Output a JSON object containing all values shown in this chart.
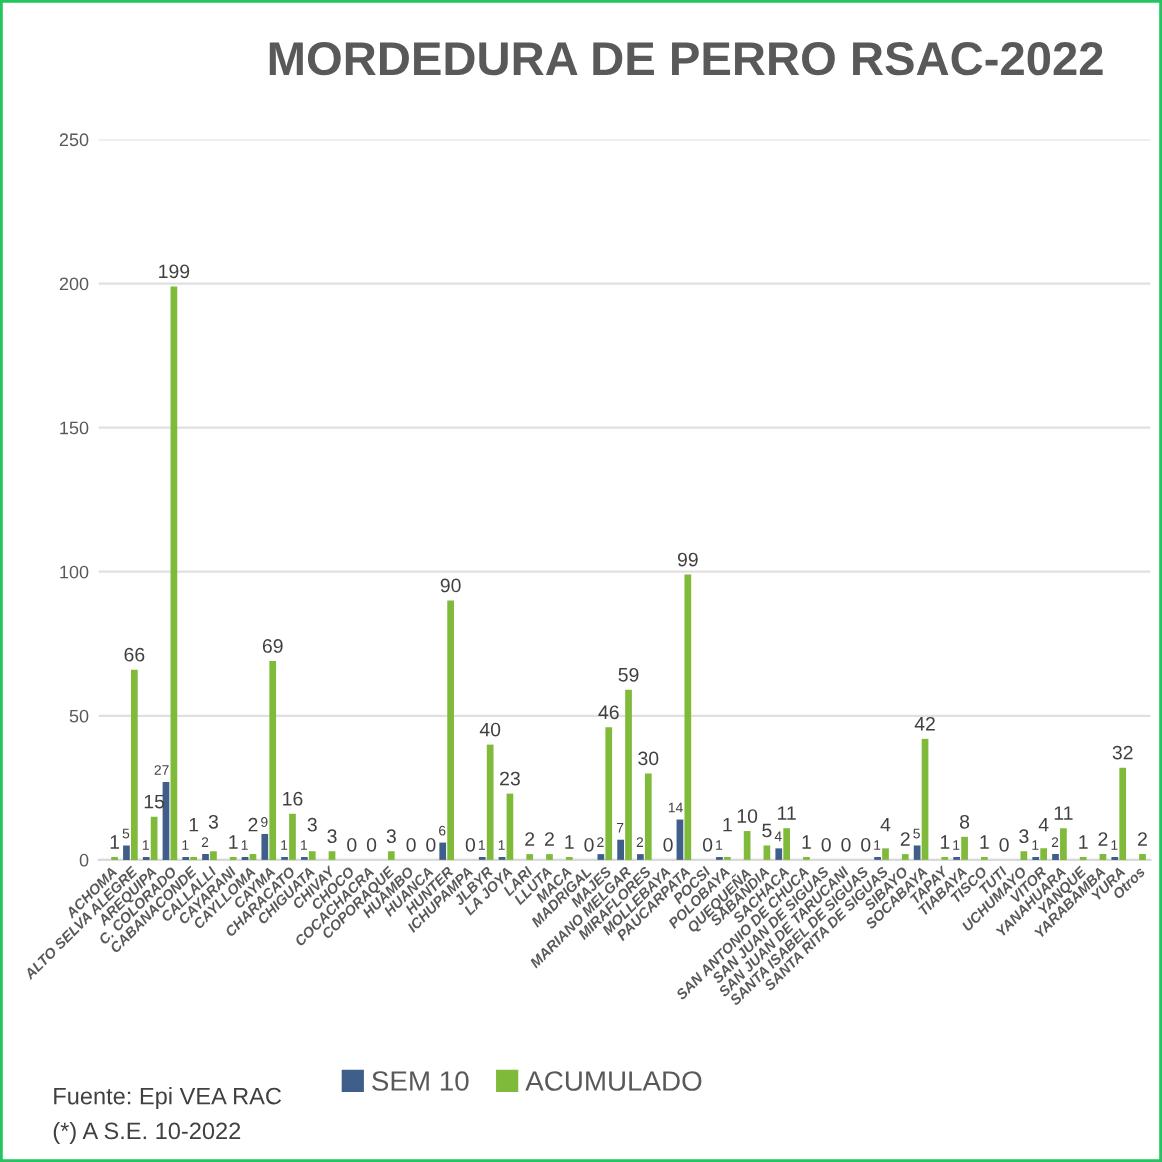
{
  "chart_data": {
    "type": "bar",
    "title": "MORDEDURA DE PERRO RSAC-2022",
    "categories": [
      "ACHOMA",
      "ALTO SELVA ALEGRE",
      "AREQUIPA",
      "C. COLORADO",
      "CABANACONDE",
      "CALLALLI",
      "CAYARANI",
      "CAYLLOMA",
      "CAYMA",
      "CHARACATO",
      "CHIGUATA",
      "CHIVAY",
      "CHOCO",
      "COCACHACRA",
      "COPORAQUE",
      "HUAMBO",
      "HUANCA",
      "HUNTER",
      "ICHUPAMPA",
      "JLBYR",
      "LA JOYA",
      "LARI",
      "LLUTA",
      "MACA",
      "MADRIGAL",
      "MAJES",
      "MARIANO MELGAR",
      "MIRAFLORES",
      "MOLLEBAYA",
      "PAUCARPATA",
      "POCSI",
      "POLOBAYA",
      "QUEQUEÑA",
      "SABANDIA",
      "SACHACA",
      "SAN ANTONIO DE CHUCA",
      "SAN JUAN DE SIGUAS",
      "SAN JUAN DE TARUCANI",
      "SANTA ISABEL DE SIGUAS",
      "SANTA RITA DE SIGUAS",
      "SIBAYO",
      "SOCABAYA",
      "TAPAY",
      "TIABAYA",
      "TISCO",
      "TUTI",
      "UCHUMAYO",
      "VITOR",
      "YANAHUARA",
      "YANQUE",
      "YARABAMBA",
      "YURA",
      "Otros"
    ],
    "series": [
      {
        "name": "SEM 10",
        "color": "#3f5f8a",
        "values": [
          null,
          5,
          1,
          27,
          1,
          2,
          null,
          1,
          9,
          1,
          1,
          null,
          null,
          null,
          null,
          null,
          null,
          6,
          null,
          1,
          1,
          null,
          null,
          null,
          null,
          2,
          7,
          2,
          null,
          14,
          null,
          1,
          null,
          null,
          4,
          null,
          null,
          null,
          null,
          1,
          null,
          5,
          null,
          1,
          null,
          null,
          null,
          1,
          2,
          null,
          null,
          1,
          null
        ]
      },
      {
        "name": "ACUMULADO",
        "color": "#7fba3a",
        "values": [
          1,
          66,
          15,
          199,
          1,
          3,
          1,
          2,
          69,
          16,
          3,
          3,
          0,
          0,
          3,
          0,
          0,
          90,
          0,
          40,
          23,
          2,
          2,
          1,
          0,
          46,
          59,
          30,
          0,
          99,
          0,
          1,
          10,
          5,
          11,
          1,
          0,
          0,
          0,
          4,
          2,
          42,
          1,
          8,
          1,
          0,
          3,
          4,
          11,
          1,
          2,
          32,
          2
        ]
      }
    ],
    "ylim": [
      0,
      250
    ],
    "yticks": [
      0,
      50,
      100,
      150,
      200,
      250
    ],
    "grid": "y",
    "legend": "bottom",
    "data_labels": true,
    "annotations": [
      "Fuente: Epi VEA RAC",
      "(*) A S.E. 10-2022"
    ]
  }
}
